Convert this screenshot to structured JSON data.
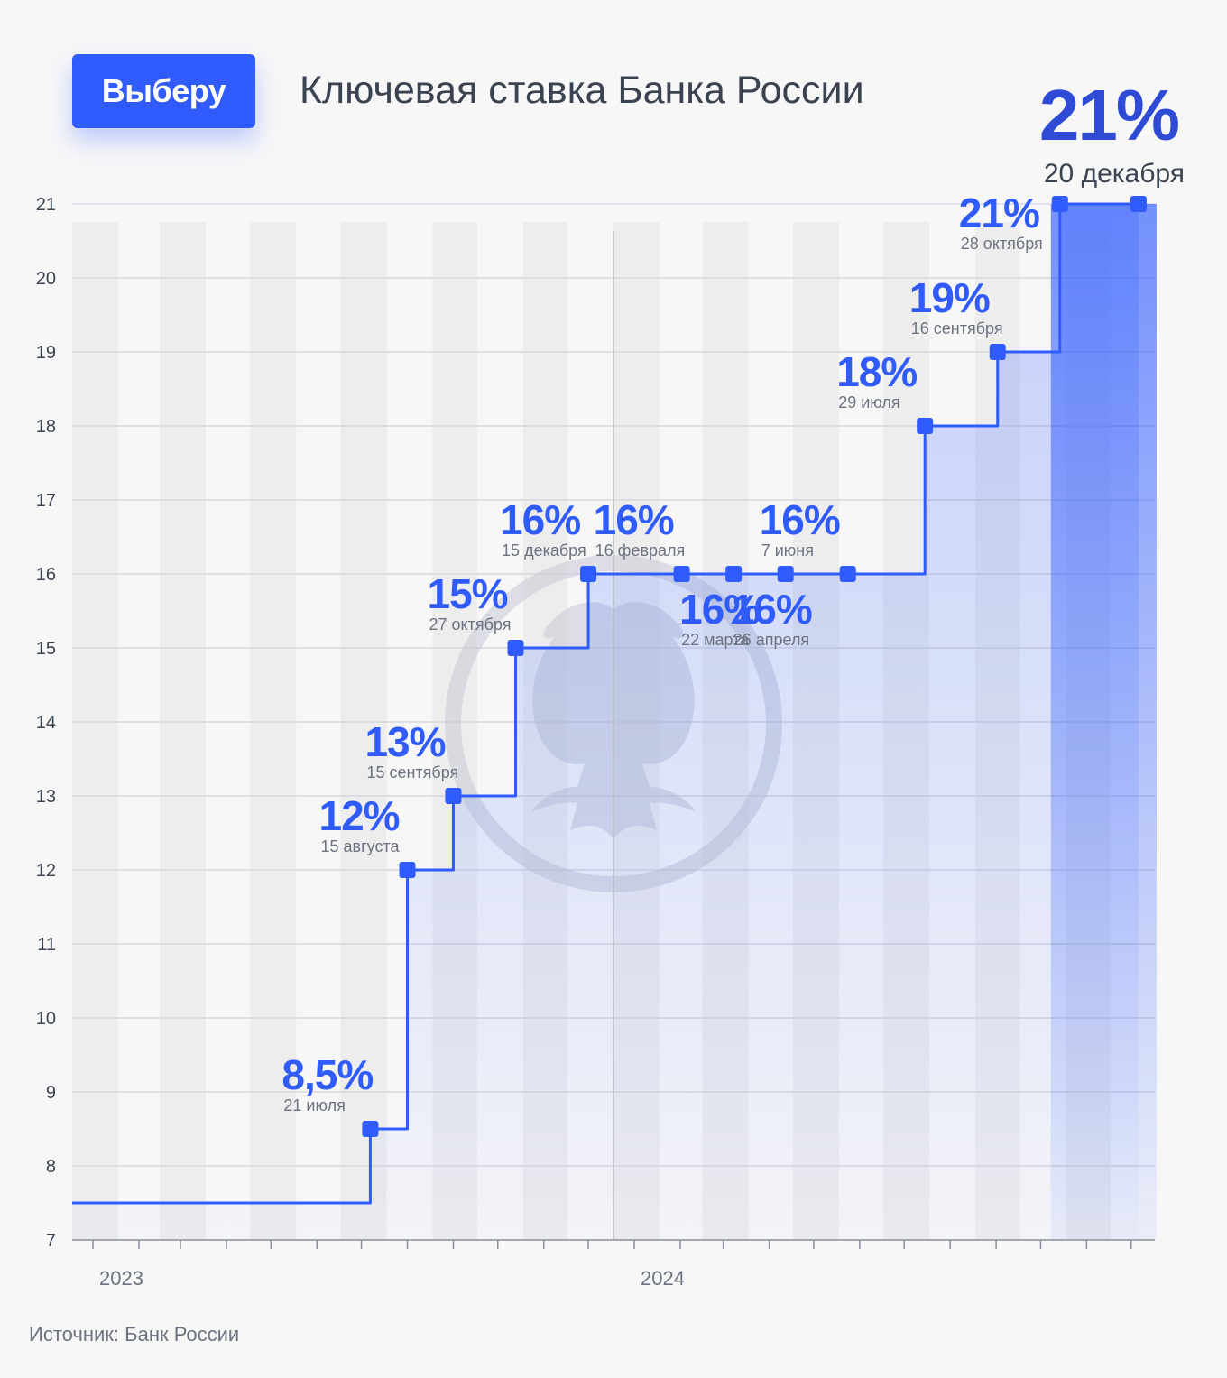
{
  "brand": {
    "logo_text": "Выберу"
  },
  "header": {
    "title": "Ключевая ставка Банка России",
    "current_rate": "21%",
    "current_date": "20 декабря"
  },
  "footer": {
    "source": "Источник: Банк России"
  },
  "colors": {
    "accent": "#2f5bff",
    "big_rate": "#2f4bd6",
    "text": "#3b4350",
    "muted": "#6c7380",
    "background": "#f7f7f8"
  },
  "icons": {
    "watermark": "bank-of-russia-eagle-emblem-icon"
  },
  "chart_data": {
    "type": "line",
    "step": true,
    "title": "Ключевая ставка Банка России",
    "xlabel": "",
    "ylabel": "",
    "ylim": [
      7,
      21
    ],
    "yticks": [
      7,
      8,
      9,
      10,
      11,
      12,
      13,
      14,
      15,
      16,
      17,
      18,
      19,
      20,
      21
    ],
    "xlim": [
      "2023-01-01",
      "2024-12-31"
    ],
    "year_labels": [
      {
        "label": "2023",
        "date": "2023-01-01"
      },
      {
        "label": "2024",
        "date": "2024-01-01"
      }
    ],
    "grid": true,
    "initial_value": 7.5,
    "points": [
      {
        "date": "2023-07-21",
        "value": 8.5,
        "label": "8,5%",
        "date_label": "21 июля",
        "label_pos": "above"
      },
      {
        "date": "2023-08-15",
        "value": 12,
        "label": "12%",
        "date_label": "15 августа",
        "label_pos": "above"
      },
      {
        "date": "2023-09-15",
        "value": 13,
        "label": "13%",
        "date_label": "15 сентября",
        "label_pos": "above"
      },
      {
        "date": "2023-10-27",
        "value": 15,
        "label": "15%",
        "date_label": "27 октября",
        "label_pos": "above"
      },
      {
        "date": "2023-12-15",
        "value": 16,
        "label": "16%",
        "date_label": "15 декабря",
        "label_pos": "above"
      },
      {
        "date": "2024-02-16",
        "value": 16,
        "label": "16%",
        "date_label": "16 февраля",
        "label_pos": "above"
      },
      {
        "date": "2024-03-22",
        "value": 16,
        "label": "16%",
        "date_label": "22 марта",
        "label_pos": "below"
      },
      {
        "date": "2024-04-26",
        "value": 16,
        "label": "16%",
        "date_label": "26 апреля",
        "label_pos": "below"
      },
      {
        "date": "2024-06-07",
        "value": 16,
        "label": "16%",
        "date_label": "7 июня",
        "label_pos": "above"
      },
      {
        "date": "2024-07-29",
        "value": 18,
        "label": "18%",
        "date_label": "29 июля",
        "label_pos": "above"
      },
      {
        "date": "2024-09-16",
        "value": 19,
        "label": "19%",
        "date_label": "16 сентября",
        "label_pos": "above"
      },
      {
        "date": "2024-10-28",
        "value": 21,
        "label": "21%",
        "date_label": "28 октября",
        "label_pos": "left"
      },
      {
        "date": "2024-12-20",
        "value": 21,
        "label": "",
        "date_label": "",
        "label_pos": "none"
      }
    ]
  }
}
